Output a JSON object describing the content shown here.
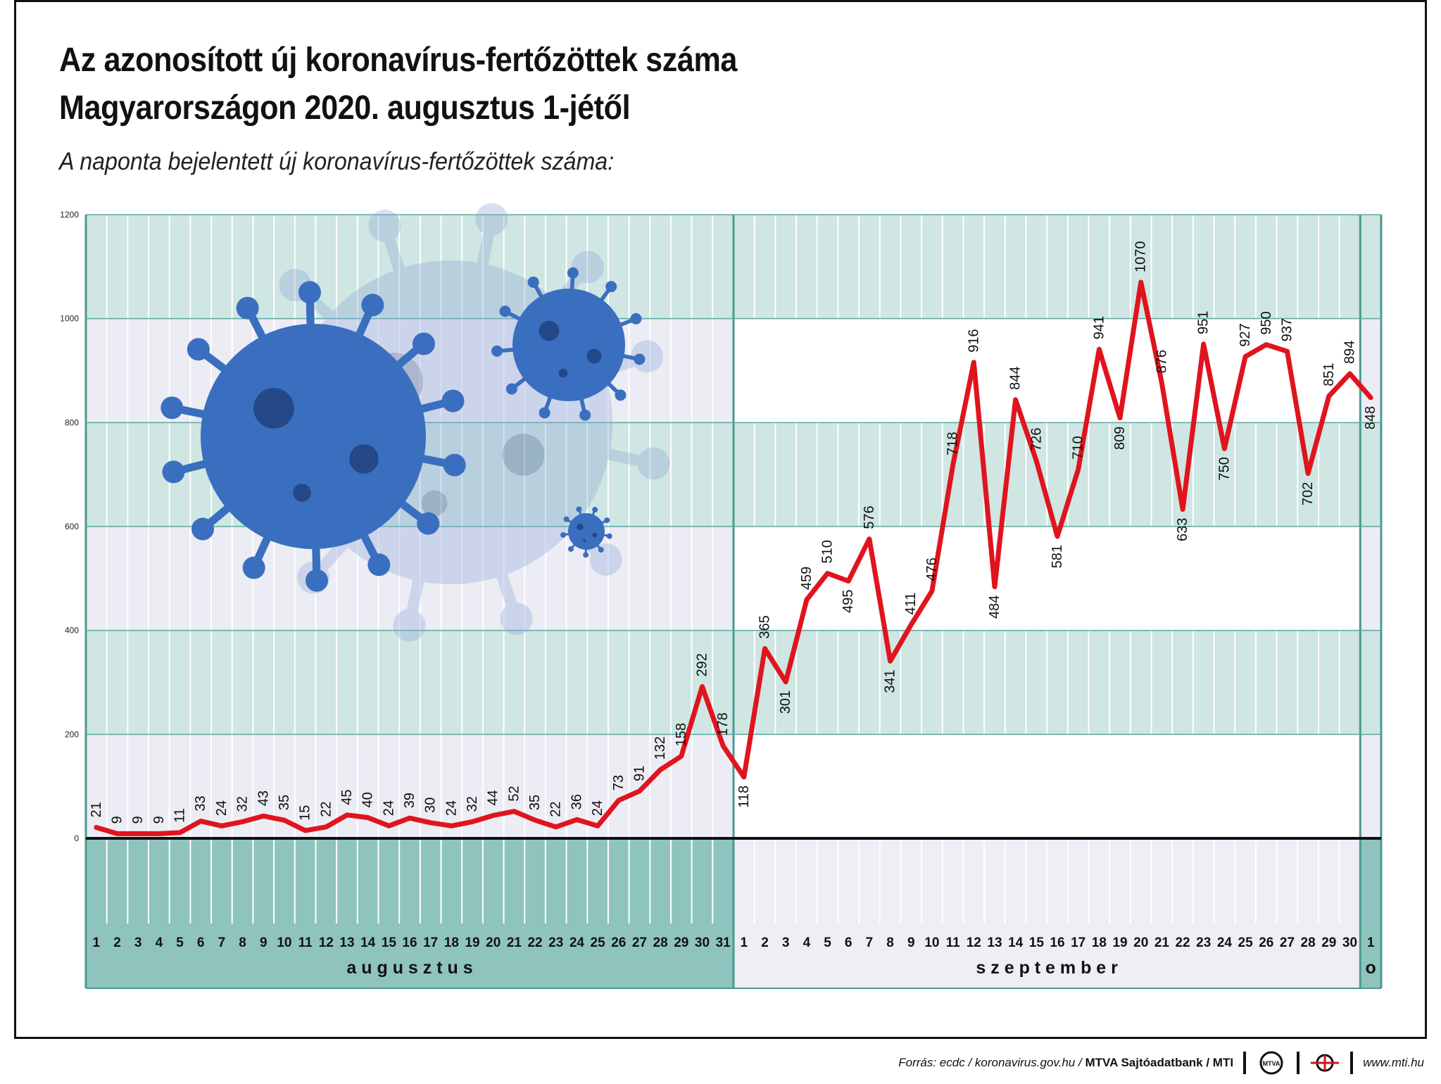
{
  "title_line1": "Az azonosított új koronavírus-fertőzöttek száma",
  "title_line2": "Magyarországon 2020. augusztus 1-jétől",
  "subtitle": "A naponta bejelentett új koronavírus-fertőzöttek száma:",
  "footer": {
    "source_prefix": "Forrás: ecdc / koronavirus.gov.hu /",
    "source_bold": "MTVA Sajtóadatbank / MTI",
    "logo1_text": "MTVA",
    "website": "www.mti.hu"
  },
  "colors": {
    "line": "#e0141e",
    "teal_band": "#cfe6e2",
    "teal_month": "#8fc4be",
    "grid_line": "#5aa9a0",
    "light_band": "#ececf4",
    "virus": "#3a6fbf"
  },
  "icons": [
    "virus-illustration-icon",
    "mtva-logo-icon",
    "mti-logo-icon"
  ],
  "chart_data": {
    "type": "line",
    "title": "Az azonosított új koronavírus-fertőzöttek száma Magyarországon 2020. augusztus 1-jétől",
    "ylim": [
      0,
      1200
    ],
    "yticks": [
      0,
      200,
      400,
      600,
      800,
      1000,
      1200
    ],
    "grid": true,
    "months": [
      {
        "label": "a u g u s z t u s",
        "days": 31
      },
      {
        "label": "s z e p t e m b e r",
        "days": 30
      },
      {
        "label": "o",
        "days": 1
      }
    ],
    "x": [
      "1",
      "2",
      "3",
      "4",
      "5",
      "6",
      "7",
      "8",
      "9",
      "10",
      "11",
      "12",
      "13",
      "14",
      "15",
      "16",
      "17",
      "18",
      "19",
      "20",
      "21",
      "22",
      "23",
      "24",
      "25",
      "26",
      "27",
      "28",
      "29",
      "30",
      "31",
      "1",
      "2",
      "3",
      "4",
      "5",
      "6",
      "7",
      "8",
      "9",
      "10",
      "11",
      "12",
      "13",
      "14",
      "15",
      "16",
      "17",
      "18",
      "19",
      "20",
      "21",
      "22",
      "23",
      "24",
      "25",
      "26",
      "27",
      "28",
      "29",
      "30",
      "1"
    ],
    "series": [
      {
        "values": [
          21,
          9,
          9,
          9,
          11,
          33,
          24,
          32,
          43,
          35,
          15,
          22,
          45,
          40,
          24,
          39,
          30,
          24,
          32,
          44,
          52,
          35,
          22,
          36,
          24,
          73,
          91,
          132,
          158,
          292,
          178,
          118,
          365,
          301,
          459,
          510,
          495,
          576,
          341,
          411,
          476,
          718,
          916,
          484,
          844,
          726,
          581,
          710,
          941,
          809,
          1070,
          876,
          633,
          951,
          750,
          927,
          950,
          937,
          702,
          851,
          894,
          848
        ]
      }
    ]
  }
}
